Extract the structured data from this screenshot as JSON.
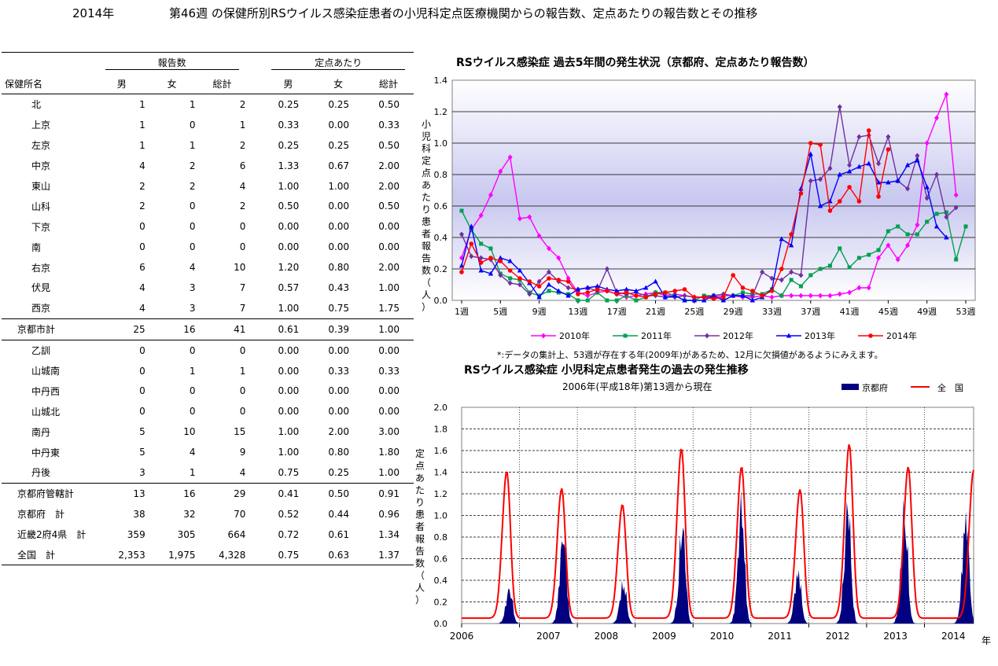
{
  "header": {
    "year": "2014年",
    "title": "第46週 の保健所別RSウイルス感染症患者の小児科定点医療機関からの報告数、定点あたりの報告数とその推移"
  },
  "table": {
    "group_reports": "報告数",
    "group_per": "定点あたり",
    "col_name": "保健所名",
    "cols": [
      "男",
      "女",
      "総計",
      "男",
      "女",
      "総計"
    ],
    "rows": [
      {
        "name": "北",
        "v": [
          "1",
          "1",
          "2",
          "0.25",
          "0.25",
          "0.50"
        ]
      },
      {
        "name": "上京",
        "v": [
          "1",
          "0",
          "1",
          "0.33",
          "0.00",
          "0.33"
        ]
      },
      {
        "name": "左京",
        "v": [
          "1",
          "1",
          "2",
          "0.25",
          "0.25",
          "0.50"
        ]
      },
      {
        "name": "中京",
        "v": [
          "4",
          "2",
          "6",
          "1.33",
          "0.67",
          "2.00"
        ]
      },
      {
        "name": "東山",
        "v": [
          "2",
          "2",
          "4",
          "1.00",
          "1.00",
          "2.00"
        ]
      },
      {
        "name": "山科",
        "v": [
          "2",
          "0",
          "2",
          "0.50",
          "0.00",
          "0.50"
        ]
      },
      {
        "name": "下京",
        "v": [
          "0",
          "0",
          "0",
          "0.00",
          "0.00",
          "0.00"
        ]
      },
      {
        "name": "南",
        "v": [
          "0",
          "0",
          "0",
          "0.00",
          "0.00",
          "0.00"
        ]
      },
      {
        "name": "右京",
        "v": [
          "6",
          "4",
          "10",
          "1.20",
          "0.80",
          "2.00"
        ]
      },
      {
        "name": "伏見",
        "v": [
          "4",
          "3",
          "7",
          "0.57",
          "0.43",
          "1.00"
        ]
      },
      {
        "name": "西京",
        "v": [
          "4",
          "3",
          "7",
          "1.00",
          "0.75",
          "1.75"
        ]
      },
      {
        "name": "京都市計",
        "v": [
          "25",
          "16",
          "41",
          "0.61",
          "0.39",
          "1.00"
        ],
        "total": true
      },
      {
        "name": "乙訓",
        "v": [
          "0",
          "0",
          "0",
          "0.00",
          "0.00",
          "0.00"
        ]
      },
      {
        "name": "山城南",
        "v": [
          "0",
          "1",
          "1",
          "0.00",
          "0.33",
          "0.33"
        ]
      },
      {
        "name": "中丹西",
        "v": [
          "0",
          "0",
          "0",
          "0.00",
          "0.00",
          "0.00"
        ]
      },
      {
        "name": "山城北",
        "v": [
          "0",
          "0",
          "0",
          "0.00",
          "0.00",
          "0.00"
        ]
      },
      {
        "name": "南丹",
        "v": [
          "5",
          "10",
          "15",
          "1.00",
          "2.00",
          "3.00"
        ]
      },
      {
        "name": "中丹東",
        "v": [
          "5",
          "4",
          "9",
          "1.00",
          "0.80",
          "1.80"
        ]
      },
      {
        "name": "丹後",
        "v": [
          "3",
          "1",
          "4",
          "0.75",
          "0.25",
          "1.00"
        ]
      },
      {
        "name": "京都府管轄計",
        "v": [
          "13",
          "16",
          "29",
          "0.41",
          "0.50",
          "0.91"
        ],
        "total": true
      },
      {
        "name": "京都府　計",
        "v": [
          "38",
          "32",
          "70",
          "0.52",
          "0.44",
          "0.96"
        ],
        "total": true
      },
      {
        "name": "近畿2府4県　計",
        "v": [
          "359",
          "305",
          "664",
          "0.72",
          "0.61",
          "1.34"
        ],
        "total": true
      },
      {
        "name": "全国　計",
        "v": [
          "2,353",
          "1,975",
          "4,328",
          "0.75",
          "0.63",
          "1.37"
        ],
        "total": true
      }
    ]
  },
  "chart_data": [
    {
      "type": "line",
      "title": "RSウイルス感染症  過去5年間の発生状況（京都府、定点あたり報告数）",
      "ylabel": "小児科定点あたり患者報告数（人）",
      "ylim": [
        0,
        1.4
      ],
      "yticks": [
        "0.0",
        "0.2",
        "0.4",
        "0.6",
        "0.8",
        "1.0",
        "1.2",
        "1.4"
      ],
      "xtick_labels": [
        "1週",
        "5週",
        "9週",
        "13週",
        "17週",
        "21週",
        "25週",
        "29週",
        "33週",
        "37週",
        "41週",
        "45週",
        "49週",
        "53週"
      ],
      "xtick_weeks": [
        1,
        5,
        9,
        13,
        17,
        21,
        25,
        29,
        33,
        37,
        41,
        45,
        49,
        53
      ],
      "grid": true,
      "legend_position": "bottom",
      "colors": {
        "2010年": "#ff00ff",
        "2011年": "#00a050",
        "2012年": "#7030a0",
        "2013年": "#0000ff",
        "2014年": "#ff0000"
      },
      "series": [
        {
          "name": "2010年",
          "start_week": 1,
          "values": [
            0.27,
            0.45,
            0.54,
            0.67,
            0.82,
            0.91,
            0.52,
            0.53,
            0.41,
            0.33,
            0.27,
            0.14,
            0.05,
            0.03,
            0.05,
            0.06,
            0.04,
            0.02,
            0.03,
            0.04,
            0.05,
            0.03,
            0.04,
            0.03,
            0.02,
            0.02,
            0.02,
            0.03,
            0.03,
            0.02,
            0.02,
            0.03,
            0.02,
            0.03,
            0.03,
            0.03,
            0.03,
            0.03,
            0.03,
            0.04,
            0.05,
            0.08,
            0.08,
            0.27,
            0.35,
            0.26,
            0.35,
            0.48,
            1.0,
            1.16,
            1.31,
            0.67
          ]
        },
        {
          "name": "2011年",
          "start_week": 1,
          "values": [
            0.57,
            0.45,
            0.36,
            0.33,
            0.17,
            0.14,
            0.13,
            0.05,
            0.03,
            0.06,
            0.05,
            0.04,
            0.0,
            0.0,
            0.05,
            0.0,
            0.0,
            0.03,
            0.0,
            0.02,
            0.05,
            0.05,
            0.03,
            0.0,
            0.0,
            0.03,
            0.03,
            0.0,
            0.03,
            0.05,
            0.04,
            0.04,
            0.07,
            0.03,
            0.13,
            0.09,
            0.16,
            0.2,
            0.22,
            0.33,
            0.21,
            0.27,
            0.29,
            0.32,
            0.44,
            0.47,
            0.42,
            0.42,
            0.5,
            0.55,
            0.56,
            0.26,
            0.47
          ]
        },
        {
          "name": "2012年",
          "start_week": 1,
          "values": [
            0.42,
            0.28,
            0.27,
            0.26,
            0.16,
            0.11,
            0.1,
            0.04,
            0.12,
            0.18,
            0.12,
            0.08,
            0.07,
            0.08,
            0.06,
            0.2,
            0.05,
            0.04,
            0.05,
            0.03,
            0.03,
            0.02,
            0.02,
            0.03,
            0.02,
            0.02,
            0.03,
            0.04,
            0.03,
            0.03,
            0.03,
            0.18,
            0.14,
            0.13,
            0.18,
            0.16,
            0.76,
            0.77,
            0.84,
            1.23,
            0.86,
            1.04,
            1.05,
            0.87,
            1.04,
            0.76,
            0.71,
            0.92,
            0.65,
            0.8,
            0.53,
            0.59
          ]
        },
        {
          "name": "2013年",
          "start_week": 1,
          "values": [
            0.22,
            0.47,
            0.19,
            0.17,
            0.27,
            0.25,
            0.19,
            0.11,
            0.02,
            0.1,
            0.06,
            0.03,
            0.07,
            0.08,
            0.09,
            0.07,
            0.06,
            0.07,
            0.06,
            0.08,
            0.12,
            0.02,
            0.03,
            0.0,
            0.0,
            0.0,
            0.03,
            0.0,
            0.03,
            0.03,
            0.0,
            0.02,
            0.07,
            0.39,
            0.35,
            0.71,
            0.93,
            0.6,
            0.63,
            0.8,
            0.82,
            0.85,
            0.87,
            0.75,
            0.75,
            0.76,
            0.86,
            0.89,
            0.72,
            0.47,
            0.4
          ]
        },
        {
          "name": "2014年",
          "start_week": 1,
          "values": [
            0.18,
            0.36,
            0.24,
            0.27,
            0.25,
            0.19,
            0.14,
            0.12,
            0.09,
            0.14,
            0.13,
            0.12,
            0.04,
            0.05,
            0.07,
            0.06,
            0.04,
            0.05,
            0.03,
            0.02,
            0.04,
            0.05,
            0.06,
            0.07,
            0.02,
            0.02,
            0.01,
            0.02,
            0.16,
            0.08,
            0.06,
            0.03,
            0.06,
            0.2,
            0.42,
            0.68,
            1.0,
            0.99,
            0.57,
            0.63,
            0.72,
            0.63,
            1.08,
            0.66,
            0.96
          ]
        }
      ],
      "footnote": "*:データの集計上、53週が存在する年(2009年)があるため、12月に欠損値があるようにみえます。"
    },
    {
      "type": "area",
      "title": "RSウイルス感染症  小児科定点患者発生の過去の発生推移",
      "subtitle": "2006年(平成18年)第13週から現在",
      "ylabel": "定点あたり患者報告数（人）",
      "xlabel": "年",
      "ylim": [
        0,
        2.0
      ],
      "yticks": [
        "0.0",
        "0.2",
        "0.4",
        "0.6",
        "0.8",
        "1.0",
        "1.2",
        "1.4",
        "1.6",
        "1.8",
        "2.0"
      ],
      "xticks": [
        "2006",
        "2007",
        "2008",
        "2009",
        "2010",
        "2011",
        "2012",
        "2013",
        "2014"
      ],
      "x_start_year": 2006,
      "x_end_year": 2014.85,
      "colors": {
        "京都府": "#000080",
        "全国": "#ff0000"
      },
      "legend_position": "top-right",
      "series": [
        {
          "name": "京都府",
          "kind": "area",
          "peaks": [
            {
              "t": 2006.83,
              "h": 0.32
            },
            {
              "t": 2007.76,
              "h": 0.82
            },
            {
              "t": 2008.8,
              "h": 0.38
            },
            {
              "t": 2009.82,
              "h": 0.9
            },
            {
              "t": 2010.84,
              "h": 1.08
            },
            {
              "t": 2011.82,
              "h": 0.48
            },
            {
              "t": 2012.68,
              "h": 1.08
            },
            {
              "t": 2013.66,
              "h": 1.05
            },
            {
              "t": 2014.72,
              "h": 1.0
            }
          ]
        },
        {
          "name": "全　国",
          "kind": "line",
          "peaks": [
            {
              "t": 2006.78,
              "h": 1.36
            },
            {
              "t": 2007.73,
              "h": 1.2
            },
            {
              "t": 2008.78,
              "h": 1.05
            },
            {
              "t": 2009.8,
              "h": 1.57
            },
            {
              "t": 2010.84,
              "h": 1.4
            },
            {
              "t": 2011.85,
              "h": 1.19
            },
            {
              "t": 2012.7,
              "h": 1.61
            },
            {
              "t": 2013.72,
              "h": 1.4
            },
            {
              "t": 2014.85,
              "h": 1.37
            }
          ]
        }
      ]
    }
  ]
}
